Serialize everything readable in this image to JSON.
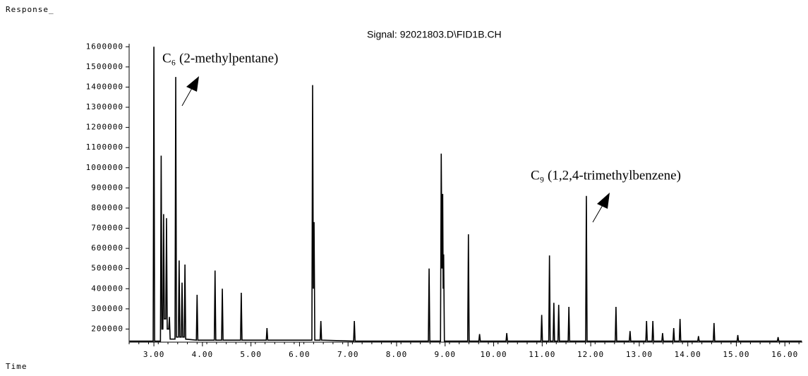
{
  "chart_data": {
    "type": "line",
    "title": "Signal: 92021803.D\\FID1B.CH",
    "y_label": "Response_",
    "x_label": "Time",
    "annotations": [
      {
        "text": "C₆ (2-methylpentane)"
      },
      {
        "text": "C₉ (1,2,4-trimethylbenzene)"
      }
    ],
    "color": "#000000",
    "xlim": [
      2.49,
      16.36
    ],
    "ylim": [
      135000,
      1615000
    ],
    "xticks": [
      {
        "value": 3,
        "label": "3.00"
      },
      {
        "value": 4,
        "label": "4.00"
      },
      {
        "value": 5,
        "label": "5.00"
      },
      {
        "value": 6,
        "label": "6.00"
      },
      {
        "value": 7,
        "label": "7.00"
      },
      {
        "value": 8,
        "label": "8.00"
      },
      {
        "value": 9,
        "label": "9.00"
      },
      {
        "value": 10,
        "label": "10.00"
      },
      {
        "value": 11,
        "label": "11.00"
      },
      {
        "value": 12,
        "label": "12.00"
      },
      {
        "value": 13,
        "label": "13.00"
      },
      {
        "value": 14,
        "label": "14.00"
      },
      {
        "value": 15,
        "label": "15.00"
      },
      {
        "value": 16,
        "label": "16.00"
      }
    ],
    "yticks": [
      200000,
      300000,
      400000,
      500000,
      600000,
      700000,
      800000,
      900000,
      1000000,
      1100000,
      1200000,
      1300000,
      1400000,
      1500000,
      1600000
    ],
    "x": [
      2.5,
      2.985,
      3.0,
      3.015,
      3.135,
      3.15,
      3.165,
      3.185,
      3.2,
      3.215,
      3.245,
      3.26,
      3.275,
      3.305,
      3.32,
      3.335,
      3.435,
      3.45,
      3.465,
      3.505,
      3.52,
      3.535,
      3.565,
      3.58,
      3.595,
      3.625,
      3.64,
      3.655,
      3.875,
      3.89,
      3.905,
      4.245,
      4.26,
      4.275,
      4.395,
      4.41,
      4.425,
      4.785,
      4.8,
      4.815,
      5.315,
      5.33,
      5.345,
      6.255,
      6.27,
      6.285,
      6.3,
      6.315,
      6.425,
      6.44,
      6.455,
      7.115,
      7.13,
      7.145,
      8.655,
      8.67,
      8.685,
      8.905,
      8.92,
      8.935,
      8.95,
      8.96,
      8.97,
      8.985,
      9.465,
      9.48,
      9.495,
      9.695,
      9.71,
      9.725,
      10.255,
      10.27,
      10.285,
      10.975,
      10.99,
      11.005,
      11.135,
      11.15,
      11.165,
      11.225,
      11.24,
      11.255,
      11.325,
      11.34,
      11.355,
      11.535,
      11.55,
      11.565,
      11.895,
      11.91,
      11.925,
      12.505,
      12.52,
      12.535,
      12.795,
      12.81,
      12.825,
      13.135,
      13.15,
      13.165,
      13.265,
      13.28,
      13.295,
      13.465,
      13.48,
      13.495,
      13.695,
      13.71,
      13.725,
      13.825,
      13.84,
      13.855,
      14.205,
      14.22,
      14.235,
      14.525,
      14.54,
      14.555,
      15.015,
      15.03,
      15.045,
      15.845,
      15.86,
      15.875,
      16.35
    ],
    "values": [
      140000,
      140000,
      1600000,
      140000,
      140000,
      1060000,
      200000,
      200000,
      770000,
      250000,
      250000,
      750000,
      200000,
      200000,
      260000,
      150000,
      150000,
      1450000,
      160000,
      160000,
      540000,
      160000,
      160000,
      430000,
      160000,
      160000,
      520000,
      150000,
      145000,
      370000,
      145000,
      145000,
      490000,
      145000,
      145000,
      400000,
      145000,
      145000,
      380000,
      145000,
      145000,
      205000,
      145000,
      145000,
      1410000,
      400000,
      730000,
      145000,
      145000,
      240000,
      145000,
      140000,
      240000,
      140000,
      140000,
      500000,
      140000,
      140000,
      1070000,
      500000,
      870000,
      400000,
      570000,
      140000,
      140000,
      670000,
      140000,
      140000,
      175000,
      140000,
      140000,
      180000,
      140000,
      140000,
      270000,
      140000,
      140000,
      565000,
      140000,
      140000,
      330000,
      140000,
      140000,
      320000,
      140000,
      140000,
      310000,
      140000,
      140000,
      860000,
      140000,
      140000,
      310000,
      140000,
      140000,
      190000,
      140000,
      140000,
      240000,
      140000,
      140000,
      240000,
      140000,
      140000,
      180000,
      140000,
      140000,
      205000,
      140000,
      140000,
      250000,
      140000,
      140000,
      165000,
      140000,
      140000,
      230000,
      140000,
      140000,
      170000,
      140000,
      140000,
      160000,
      140000,
      140000
    ]
  }
}
